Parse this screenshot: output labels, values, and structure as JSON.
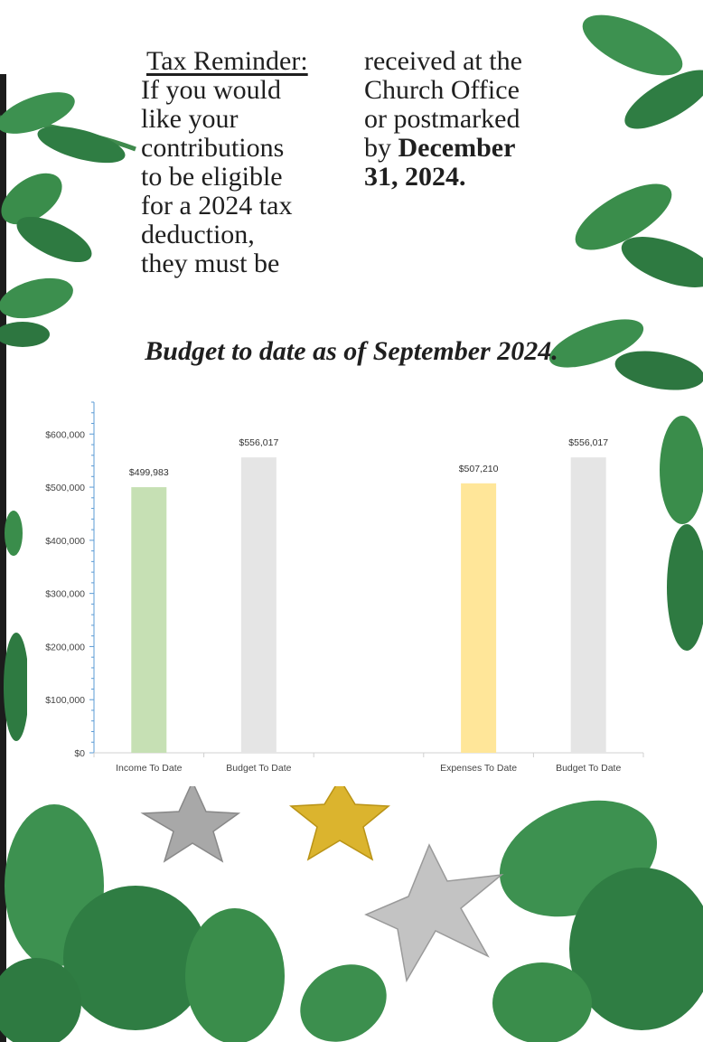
{
  "reminder": {
    "heading": "Tax Reminder:",
    "line1": "If you would",
    "line2": "like your",
    "line3": "contributions",
    "line4": "to be eligible",
    "line5": "for a 2024 tax",
    "line6": "deduction,",
    "line7": "they must be",
    "line8": "received at the",
    "line9": "Church Office",
    "line10": "or postmarked",
    "line11_pre": "by ",
    "line11_bold": "December",
    "line12_bold": "31, 2024."
  },
  "budget_title": "Budget to date as of September 2024.",
  "chart_data": {
    "type": "bar",
    "title": "",
    "xlabel": "",
    "ylabel": "",
    "ylim": [
      0,
      660000
    ],
    "yticks": [
      0,
      100000,
      200000,
      300000,
      400000,
      500000,
      600000
    ],
    "ytick_labels": [
      "$0",
      "$100,000",
      "$200,000",
      "$300,000",
      "$400,000",
      "$500,000",
      "$600,000"
    ],
    "categories": [
      "Income To Date",
      "Budget To Date",
      "",
      "Expenses To Date",
      "Budget To Date"
    ],
    "values": [
      499983,
      556017,
      null,
      507210,
      556017
    ],
    "value_labels": [
      "$499,983",
      "$556,017",
      "",
      "$507,210",
      "$556,017"
    ],
    "colors": [
      "#c6e0b4",
      "#e5e5e5",
      "#ffffff",
      "#ffe699",
      "#e5e5e5"
    ],
    "grid": false,
    "legend": "none"
  }
}
